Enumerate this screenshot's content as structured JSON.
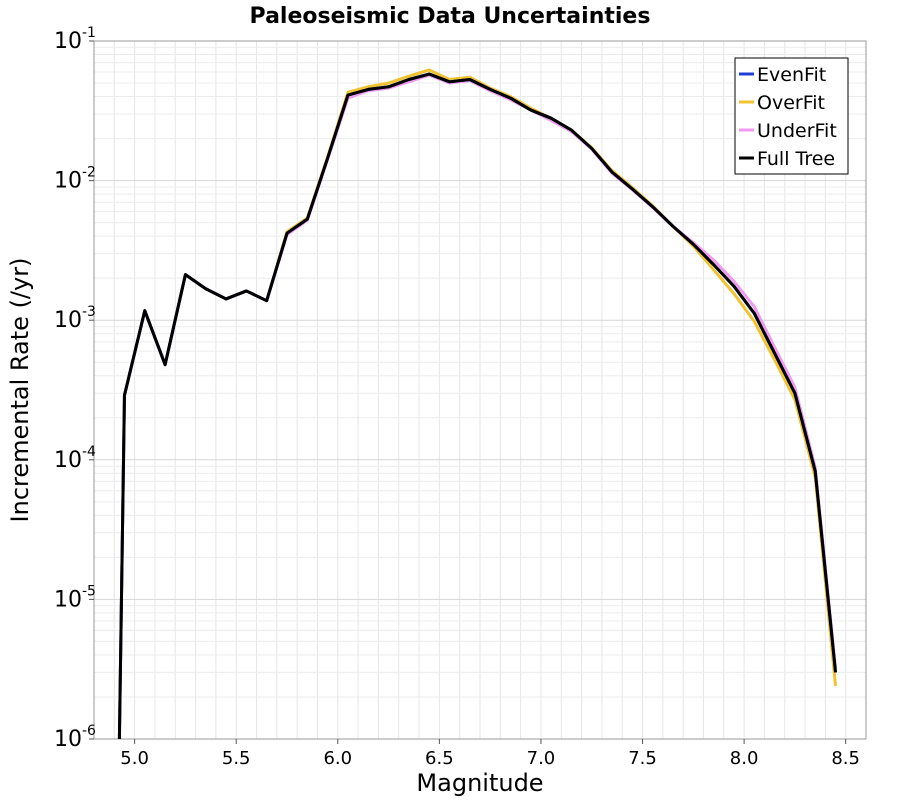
{
  "chart_data": {
    "type": "line",
    "title": "Paleoseismic Data Uncertainties",
    "xlabel": "Magnitude",
    "ylabel": "Incremental Rate (/yr)",
    "xlim": [
      4.8,
      8.6
    ],
    "ylim": [
      1e-06,
      0.1
    ],
    "yscale": "log",
    "grid": true,
    "legend_position": "top-right",
    "x_ticks": [
      5.0,
      5.5,
      6.0,
      6.5,
      7.0,
      7.5,
      8.0,
      8.5
    ],
    "x_tick_labels": [
      "5.0",
      "5.5",
      "6.0",
      "6.5",
      "7.0",
      "7.5",
      "8.0",
      "8.5"
    ],
    "y_ticks": [
      {
        "value": 1e-06,
        "base": "10",
        "exp": "-6"
      },
      {
        "value": 1e-05,
        "base": "10",
        "exp": "-5"
      },
      {
        "value": 0.0001,
        "base": "10",
        "exp": "-4"
      },
      {
        "value": 0.001,
        "base": "10",
        "exp": "-3"
      },
      {
        "value": 0.01,
        "base": "10",
        "exp": "-2"
      },
      {
        "value": 0.1,
        "base": "10",
        "exp": "-1"
      }
    ],
    "series": [
      {
        "name": "EvenFit",
        "color": "#1f3fd6",
        "x": [
          4.925,
          4.95,
          5.05,
          5.15,
          5.25,
          5.35,
          5.45,
          5.55,
          5.65,
          5.75,
          5.85,
          5.95,
          6.05,
          6.15,
          6.25,
          6.35,
          6.45,
          6.55,
          6.65,
          6.75,
          6.85,
          6.95,
          7.05,
          7.15,
          7.25,
          7.35,
          7.45,
          7.55,
          7.65,
          7.75,
          7.85,
          7.95,
          8.05,
          8.15,
          8.25,
          8.35,
          8.45
        ],
        "y": [
          1e-06,
          0.00029,
          0.00117,
          0.00048,
          0.00212,
          0.00168,
          0.00142,
          0.00162,
          0.00138,
          0.0042,
          0.0053,
          0.0145,
          0.041,
          0.045,
          0.047,
          0.053,
          0.058,
          0.051,
          0.053,
          0.045,
          0.039,
          0.032,
          0.028,
          0.023,
          0.017,
          0.0115,
          0.0087,
          0.0065,
          0.0047,
          0.0035,
          0.0025,
          0.00175,
          0.00112,
          0.00058,
          0.0003,
          8.3e-05,
          3e-06
        ]
      },
      {
        "name": "OverFit",
        "color": "#f0c330",
        "x": [
          4.925,
          4.95,
          5.05,
          5.15,
          5.25,
          5.35,
          5.45,
          5.55,
          5.65,
          5.75,
          5.85,
          5.95,
          6.05,
          6.15,
          6.25,
          6.35,
          6.45,
          6.55,
          6.65,
          6.75,
          6.85,
          6.95,
          7.05,
          7.15,
          7.25,
          7.35,
          7.45,
          7.55,
          7.65,
          7.75,
          7.85,
          7.95,
          8.05,
          8.15,
          8.25,
          8.35,
          8.45
        ],
        "y": [
          1e-06,
          0.00029,
          0.00117,
          0.00048,
          0.00212,
          0.00168,
          0.00142,
          0.00162,
          0.00138,
          0.0043,
          0.0054,
          0.0148,
          0.043,
          0.047,
          0.05,
          0.056,
          0.062,
          0.053,
          0.055,
          0.046,
          0.04,
          0.033,
          0.028,
          0.023,
          0.0172,
          0.0118,
          0.0089,
          0.0066,
          0.0047,
          0.0034,
          0.0023,
          0.00155,
          0.00098,
          0.00052,
          0.00027,
          7.5e-05,
          2.4e-06
        ]
      },
      {
        "name": "UnderFit",
        "color": "#f09af0",
        "x": [
          4.925,
          4.95,
          5.05,
          5.15,
          5.25,
          5.35,
          5.45,
          5.55,
          5.65,
          5.75,
          5.85,
          5.95,
          6.05,
          6.15,
          6.25,
          6.35,
          6.45,
          6.55,
          6.65,
          6.75,
          6.85,
          6.95,
          7.05,
          7.15,
          7.25,
          7.35,
          7.45,
          7.55,
          7.65,
          7.75,
          7.85,
          7.95,
          8.05,
          8.15,
          8.25,
          8.35,
          8.45
        ],
        "y": [
          1e-06,
          0.00029,
          0.00117,
          0.00048,
          0.00212,
          0.00168,
          0.00142,
          0.00162,
          0.00138,
          0.0041,
          0.0052,
          0.0142,
          0.039,
          0.044,
          0.046,
          0.051,
          0.057,
          0.05,
          0.052,
          0.044,
          0.038,
          0.032,
          0.027,
          0.0225,
          0.0168,
          0.0113,
          0.0086,
          0.0064,
          0.0047,
          0.0036,
          0.0027,
          0.0019,
          0.00125,
          0.00064,
          0.00033,
          8.8e-05,
          3.2e-06
        ]
      },
      {
        "name": "Full Tree",
        "color": "#000000",
        "x": [
          4.925,
          4.95,
          5.05,
          5.15,
          5.25,
          5.35,
          5.45,
          5.55,
          5.65,
          5.75,
          5.85,
          5.95,
          6.05,
          6.15,
          6.25,
          6.35,
          6.45,
          6.55,
          6.65,
          6.75,
          6.85,
          6.95,
          7.05,
          7.15,
          7.25,
          7.35,
          7.45,
          7.55,
          7.65,
          7.75,
          7.85,
          7.95,
          8.05,
          8.15,
          8.25,
          8.35,
          8.45
        ],
        "y": [
          1e-06,
          0.00029,
          0.00117,
          0.00048,
          0.00212,
          0.00168,
          0.00142,
          0.00162,
          0.00138,
          0.0042,
          0.0053,
          0.0145,
          0.041,
          0.045,
          0.047,
          0.053,
          0.058,
          0.051,
          0.053,
          0.045,
          0.039,
          0.032,
          0.028,
          0.023,
          0.017,
          0.0115,
          0.0087,
          0.0065,
          0.0047,
          0.0035,
          0.0025,
          0.00175,
          0.00112,
          0.00058,
          0.0003,
          8.3e-05,
          3e-06
        ]
      }
    ]
  }
}
